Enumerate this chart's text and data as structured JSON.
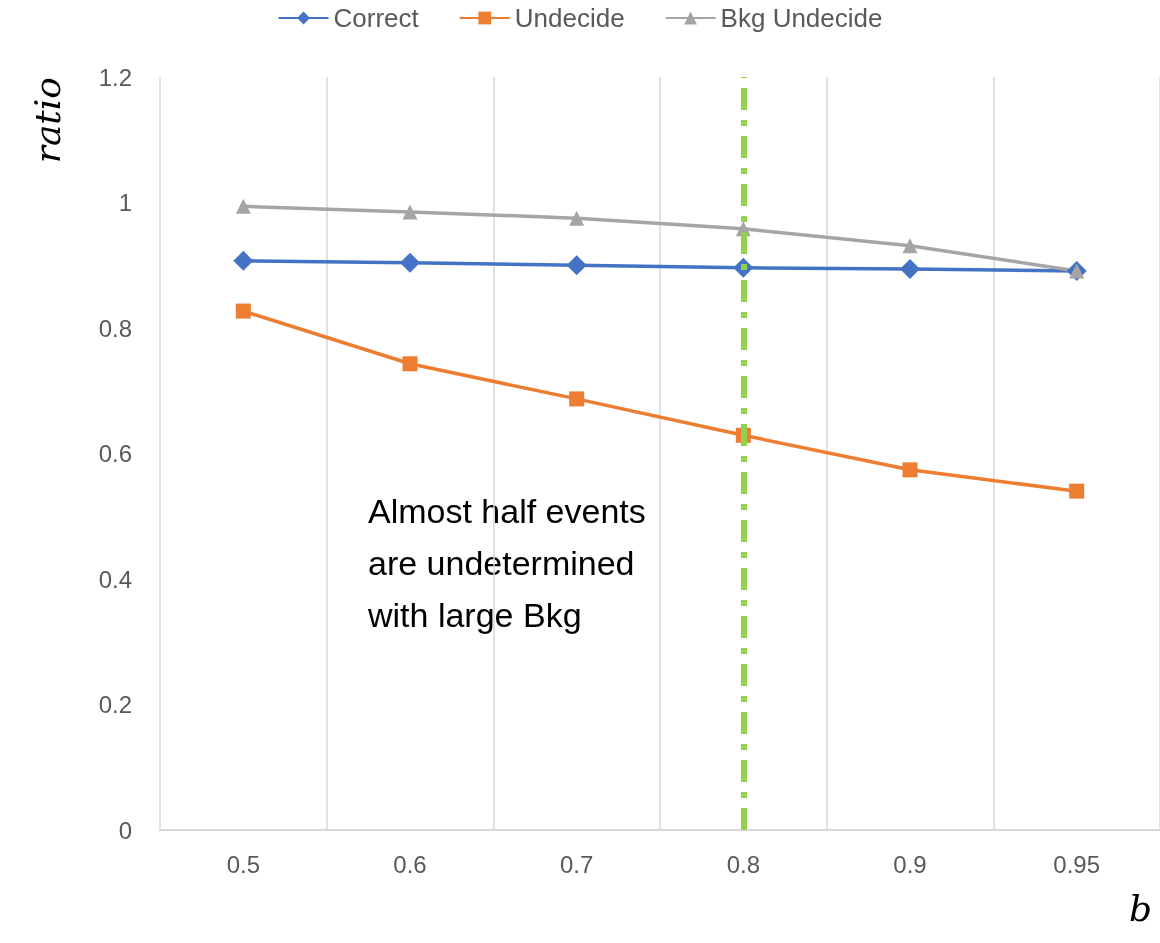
{
  "chart_data": {
    "type": "line",
    "xlabel": "b",
    "ylabel": "ratio",
    "categories": [
      "0.5",
      "0.6",
      "0.7",
      "0.8",
      "0.9",
      "0.95"
    ],
    "series": [
      {
        "name": "Correct",
        "color": "#4472c4",
        "marker": "diamond",
        "values": [
          0.907,
          0.904,
          0.9,
          0.896,
          0.894,
          0.891
        ]
      },
      {
        "name": "Undecide",
        "color": "#ed7d31",
        "marker": "square",
        "values": [
          0.827,
          0.743,
          0.687,
          0.629,
          0.574,
          0.54
        ]
      },
      {
        "name": "Bkg Undecide",
        "color": "#a5a5a5",
        "marker": "triangle",
        "values": [
          0.994,
          0.985,
          0.975,
          0.958,
          0.931,
          0.891
        ]
      }
    ],
    "ylim": [
      0,
      1.2
    ],
    "yticks": [
      0,
      0.2,
      0.4,
      0.6,
      0.8,
      1,
      1.2
    ],
    "grid": "x",
    "legend": "top",
    "ref_lines": [
      {
        "axis": "x",
        "value": "0.8",
        "color": "#92d050",
        "line_style": "dashed"
      }
    ],
    "annotations": [
      "Almost half events\nare undetermined\nwith large Bkg"
    ]
  }
}
